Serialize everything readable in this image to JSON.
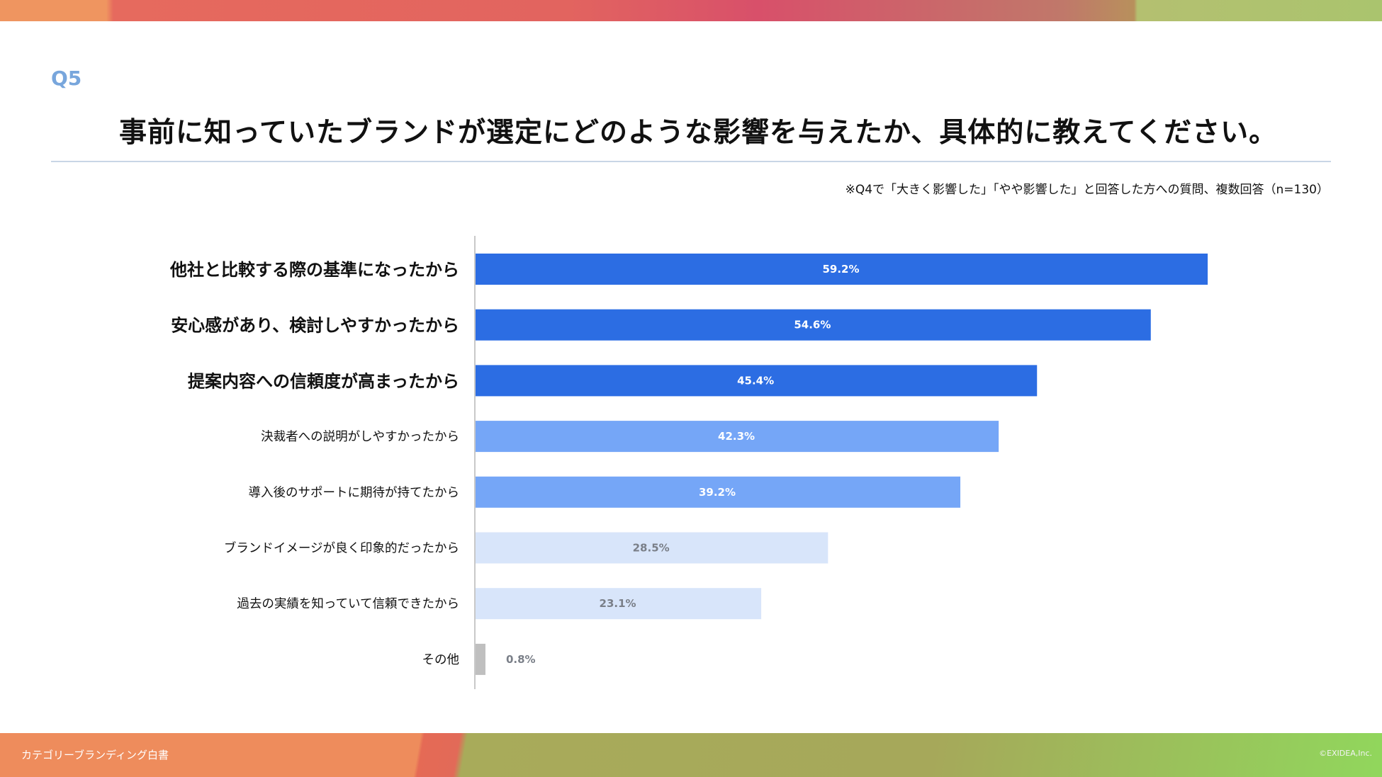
{
  "header": {
    "question_no": "Q5",
    "title": "事前に知っていたブランドが選定にどのような影響を与えたか、具体的に教えてください。",
    "note": "※Q4で「大きく影響した」「やや影響した」と回答した方への質問、複数回答（n=130）"
  },
  "footer": {
    "left": "カテゴリーブランディング白書",
    "right": "©EXIDEA,Inc."
  },
  "chart_data": {
    "type": "bar",
    "orientation": "horizontal",
    "unit": "%",
    "xlim": [
      0,
      100
    ],
    "grid": false,
    "categories": [
      "他社と比較する際の基準になったから",
      "安心感があり、検討しやすかったから",
      "提案内容への信頼度が高まったから",
      "決裁者への説明がしやすかったから",
      "導入後のサポートに期待が持てたから",
      "ブランドイメージが良く印象的だったから",
      "過去の実績を知っていて信頼できたから",
      "その他"
    ],
    "values": [
      59.2,
      54.6,
      45.4,
      42.3,
      39.2,
      28.5,
      23.1,
      0.8
    ],
    "labels": [
      "59.2%",
      "54.6%",
      "45.4%",
      "42.3%",
      "39.2%",
      "28.5%",
      "23.1%",
      "0.8%"
    ],
    "colors": [
      "#2c6de3",
      "#2c6de3",
      "#2c6de3",
      "#75a6f7",
      "#75a6f7",
      "#d8e5fa",
      "#d8e5fa",
      "#bfbfbf"
    ],
    "label_colors": [
      "#ffffff",
      "#ffffff",
      "#ffffff",
      "#ffffff",
      "#ffffff",
      "#7a7f88",
      "#7a7f88",
      "#7a7f88"
    ]
  }
}
